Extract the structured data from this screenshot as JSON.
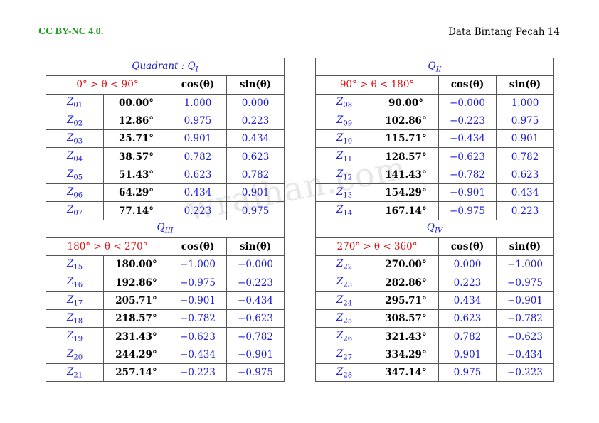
{
  "header": {
    "license": "CC BY-NC 4.0.",
    "title": "Data Bintang Pecah 14"
  },
  "watermark": "wraihan.com",
  "left_table": {
    "blocks": [
      {
        "heading": "Quadrant : Q",
        "heading_sub": "I",
        "range": "0° > θ < 90°",
        "col_cos": "cos(θ)",
        "col_sin": "sin(θ)",
        "rows": [
          {
            "z": "Z",
            "sub": "01",
            "angle": "00.00°",
            "cos": "1.000",
            "sin": "0.000"
          },
          {
            "z": "Z",
            "sub": "02",
            "angle": "12.86°",
            "cos": "0.975",
            "sin": "0.223"
          },
          {
            "z": "Z",
            "sub": "03",
            "angle": "25.71°",
            "cos": "0.901",
            "sin": "0.434"
          },
          {
            "z": "Z",
            "sub": "04",
            "angle": "38.57°",
            "cos": "0.782",
            "sin": "0.623"
          },
          {
            "z": "Z",
            "sub": "05",
            "angle": "51.43°",
            "cos": "0.623",
            "sin": "0.782"
          },
          {
            "z": "Z",
            "sub": "06",
            "angle": "64.29°",
            "cos": "0.434",
            "sin": "0.901"
          },
          {
            "z": "Z",
            "sub": "07",
            "angle": "77.14°",
            "cos": "0.223",
            "sin": "0.975"
          }
        ]
      },
      {
        "heading": "Q",
        "heading_sub": "III",
        "range": "180° > θ < 270°",
        "col_cos": "cos(θ)",
        "col_sin": "sin(θ)",
        "rows": [
          {
            "z": "Z",
            "sub": "15",
            "angle": "180.00°",
            "cos": "−1.000",
            "sin": "−0.000"
          },
          {
            "z": "Z",
            "sub": "16",
            "angle": "192.86°",
            "cos": "−0.975",
            "sin": "−0.223"
          },
          {
            "z": "Z",
            "sub": "17",
            "angle": "205.71°",
            "cos": "−0.901",
            "sin": "−0.434"
          },
          {
            "z": "Z",
            "sub": "18",
            "angle": "218.57°",
            "cos": "−0.782",
            "sin": "−0.623"
          },
          {
            "z": "Z",
            "sub": "19",
            "angle": "231.43°",
            "cos": "−0.623",
            "sin": "−0.782"
          },
          {
            "z": "Z",
            "sub": "20",
            "angle": "244.29°",
            "cos": "−0.434",
            "sin": "−0.901"
          },
          {
            "z": "Z",
            "sub": "21",
            "angle": "257.14°",
            "cos": "−0.223",
            "sin": "−0.975"
          }
        ]
      }
    ]
  },
  "right_table": {
    "blocks": [
      {
        "heading": "Q",
        "heading_sub": "II",
        "range": "90° > θ < 180°",
        "col_cos": "cos(θ)",
        "col_sin": "sin(θ)",
        "rows": [
          {
            "z": "Z",
            "sub": "08",
            "angle": "90.00°",
            "cos": "−0.000",
            "sin": "1.000"
          },
          {
            "z": "Z",
            "sub": "09",
            "angle": "102.86°",
            "cos": "−0.223",
            "sin": "0.975"
          },
          {
            "z": "Z",
            "sub": "10",
            "angle": "115.71°",
            "cos": "−0.434",
            "sin": "0.901"
          },
          {
            "z": "Z",
            "sub": "11",
            "angle": "128.57°",
            "cos": "−0.623",
            "sin": "0.782"
          },
          {
            "z": "Z",
            "sub": "12",
            "angle": "141.43°",
            "cos": "−0.782",
            "sin": "0.623"
          },
          {
            "z": "Z",
            "sub": "13",
            "angle": "154.29°",
            "cos": "−0.901",
            "sin": "0.434"
          },
          {
            "z": "Z",
            "sub": "14",
            "angle": "167.14°",
            "cos": "−0.975",
            "sin": "0.223"
          }
        ]
      },
      {
        "heading": "Q",
        "heading_sub": "IV",
        "range": "270° > θ < 360°",
        "col_cos": "cos(θ)",
        "col_sin": "sin(θ)",
        "rows": [
          {
            "z": "Z",
            "sub": "22",
            "angle": "270.00°",
            "cos": "0.000",
            "sin": "−1.000"
          },
          {
            "z": "Z",
            "sub": "23",
            "angle": "282.86°",
            "cos": "0.223",
            "sin": "−0.975"
          },
          {
            "z": "Z",
            "sub": "24",
            "angle": "295.71°",
            "cos": "0.434",
            "sin": "−0.901"
          },
          {
            "z": "Z",
            "sub": "25",
            "angle": "308.57°",
            "cos": "0.623",
            "sin": "−0.782"
          },
          {
            "z": "Z",
            "sub": "26",
            "angle": "321.43°",
            "cos": "0.782",
            "sin": "−0.623"
          },
          {
            "z": "Z",
            "sub": "27",
            "angle": "334.29°",
            "cos": "0.901",
            "sin": "−0.434"
          },
          {
            "z": "Z",
            "sub": "28",
            "angle": "347.14°",
            "cos": "0.975",
            "sin": "−0.223"
          }
        ]
      }
    ]
  }
}
